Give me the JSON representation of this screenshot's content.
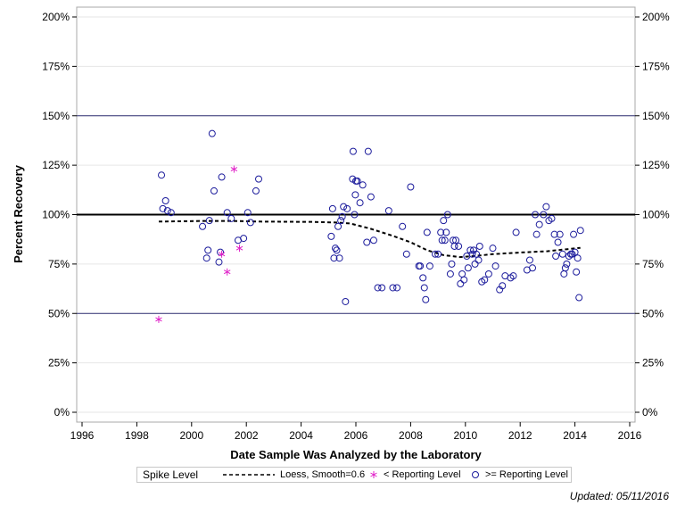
{
  "chart_data": {
    "type": "scatter",
    "xlabel": "Date Sample Was Analyzed by the Laboratory",
    "ylabel": "Percent Recovery",
    "xlim": [
      1996,
      2016
    ],
    "ylim": [
      0,
      200
    ],
    "xticks": [
      1996,
      1998,
      2000,
      2002,
      2004,
      2006,
      2008,
      2010,
      2012,
      2014,
      2016
    ],
    "yticks": [
      0,
      25,
      50,
      75,
      100,
      125,
      150,
      175,
      200
    ],
    "ytick_labels": [
      "0%",
      "25%",
      "50%",
      "75%",
      "100%",
      "125%",
      "150%",
      "175%",
      "200%"
    ],
    "reference_lines": [
      50,
      100,
      150
    ],
    "spike_level": 100,
    "legend": {
      "title": "Spike Level",
      "loess": "Loess, Smooth=0.6",
      "below": "< Reporting Level",
      "above": ">= Reporting Level"
    },
    "colors": {
      "loess": "#000000",
      "below": "#e020c8",
      "above": "#1c1c9c",
      "ref": "#2a2a6e"
    },
    "series": [
      {
        "name": "< Reporting Level",
        "points": [
          [
            1998.8,
            47
          ],
          [
            2001.1,
            80
          ],
          [
            2001.3,
            71
          ],
          [
            2001.55,
            123
          ],
          [
            2001.75,
            83
          ]
        ]
      },
      {
        "name": ">= Reporting Level",
        "points": [
          [
            1998.9,
            120
          ],
          [
            1998.95,
            103
          ],
          [
            1999.05,
            107
          ],
          [
            1999.12,
            102
          ],
          [
            1999.25,
            101
          ],
          [
            2000.4,
            94
          ],
          [
            2000.55,
            78
          ],
          [
            2000.6,
            82
          ],
          [
            2000.65,
            97
          ],
          [
            2000.75,
            141
          ],
          [
            2000.82,
            112
          ],
          [
            2001.0,
            76
          ],
          [
            2001.05,
            81
          ],
          [
            2001.1,
            119
          ],
          [
            2001.3,
            101
          ],
          [
            2001.45,
            98
          ],
          [
            2001.7,
            87
          ],
          [
            2001.9,
            88
          ],
          [
            2002.05,
            101
          ],
          [
            2002.15,
            96
          ],
          [
            2002.35,
            112
          ],
          [
            2002.45,
            118
          ],
          [
            2005.1,
            89
          ],
          [
            2005.15,
            103
          ],
          [
            2005.2,
            78
          ],
          [
            2005.25,
            83
          ],
          [
            2005.3,
            82
          ],
          [
            2005.35,
            94
          ],
          [
            2005.4,
            78
          ],
          [
            2005.45,
            97
          ],
          [
            2005.5,
            99
          ],
          [
            2005.55,
            104
          ],
          [
            2005.62,
            56
          ],
          [
            2005.68,
            103
          ],
          [
            2005.88,
            118
          ],
          [
            2005.9,
            132
          ],
          [
            2005.95,
            100
          ],
          [
            2005.98,
            110
          ],
          [
            2006.0,
            117
          ],
          [
            2006.05,
            117
          ],
          [
            2006.15,
            106
          ],
          [
            2006.25,
            115
          ],
          [
            2006.4,
            86
          ],
          [
            2006.45,
            132
          ],
          [
            2006.55,
            109
          ],
          [
            2006.65,
            87
          ],
          [
            2006.8,
            63
          ],
          [
            2006.95,
            63
          ],
          [
            2007.2,
            102
          ],
          [
            2007.35,
            63
          ],
          [
            2007.5,
            63
          ],
          [
            2007.7,
            94
          ],
          [
            2007.85,
            80
          ],
          [
            2008.0,
            114
          ],
          [
            2008.3,
            74
          ],
          [
            2008.35,
            74
          ],
          [
            2008.45,
            68
          ],
          [
            2008.5,
            63
          ],
          [
            2008.55,
            57
          ],
          [
            2008.6,
            91
          ],
          [
            2008.7,
            74
          ],
          [
            2008.9,
            80
          ],
          [
            2009.0,
            80
          ],
          [
            2009.1,
            91
          ],
          [
            2009.15,
            87
          ],
          [
            2009.2,
            97
          ],
          [
            2009.25,
            87
          ],
          [
            2009.3,
            91
          ],
          [
            2009.35,
            100
          ],
          [
            2009.45,
            70
          ],
          [
            2009.5,
            75
          ],
          [
            2009.55,
            87
          ],
          [
            2009.6,
            84
          ],
          [
            2009.65,
            87
          ],
          [
            2009.75,
            84
          ],
          [
            2009.82,
            65
          ],
          [
            2009.88,
            70
          ],
          [
            2009.95,
            67
          ],
          [
            2010.05,
            79
          ],
          [
            2010.1,
            73
          ],
          [
            2010.18,
            82
          ],
          [
            2010.25,
            80
          ],
          [
            2010.3,
            82
          ],
          [
            2010.35,
            75
          ],
          [
            2010.4,
            80
          ],
          [
            2010.48,
            77
          ],
          [
            2010.52,
            84
          ],
          [
            2010.6,
            66
          ],
          [
            2010.7,
            67
          ],
          [
            2010.85,
            70
          ],
          [
            2011.0,
            83
          ],
          [
            2011.1,
            74
          ],
          [
            2011.25,
            62
          ],
          [
            2011.35,
            64
          ],
          [
            2011.45,
            69
          ],
          [
            2011.65,
            68
          ],
          [
            2011.75,
            69
          ],
          [
            2011.85,
            91
          ],
          [
            2012.25,
            72
          ],
          [
            2012.35,
            77
          ],
          [
            2012.45,
            73
          ],
          [
            2012.55,
            100
          ],
          [
            2012.6,
            90
          ],
          [
            2012.7,
            95
          ],
          [
            2012.85,
            100
          ],
          [
            2012.95,
            104
          ],
          [
            2013.05,
            97
          ],
          [
            2013.15,
            98
          ],
          [
            2013.25,
            90
          ],
          [
            2013.3,
            79
          ],
          [
            2013.38,
            86
          ],
          [
            2013.45,
            90
          ],
          [
            2013.55,
            80
          ],
          [
            2013.6,
            70
          ],
          [
            2013.65,
            73
          ],
          [
            2013.7,
            75
          ],
          [
            2013.78,
            79
          ],
          [
            2013.85,
            80
          ],
          [
            2013.9,
            80
          ],
          [
            2014.0,
            81
          ],
          [
            2014.05,
            71
          ],
          [
            2014.1,
            78
          ],
          [
            2014.15,
            58
          ],
          [
            2014.2,
            92
          ],
          [
            2013.95,
            90
          ]
        ]
      }
    ],
    "loess": {
      "name": "Loess, Smooth=0.6",
      "x": [
        1998.8,
        1999.5,
        2000.5,
        2001.5,
        2002.5,
        2003.5,
        2004.5,
        2005.3,
        2005.8,
        2006.5,
        2007.3,
        2008.0,
        2008.6,
        2009.2,
        2009.8,
        2010.3,
        2011.0,
        2012.0,
        2013.0,
        2014.2
      ],
      "y": [
        96.5,
        96.6,
        96.8,
        96.8,
        96.5,
        96.4,
        96.3,
        96.0,
        95.5,
        93.0,
        89.5,
        86.0,
        82.0,
        79.5,
        78.5,
        79.0,
        80.0,
        80.8,
        81.5,
        83.2
      ]
    }
  },
  "footnote": "Updated: 05/11/2016"
}
